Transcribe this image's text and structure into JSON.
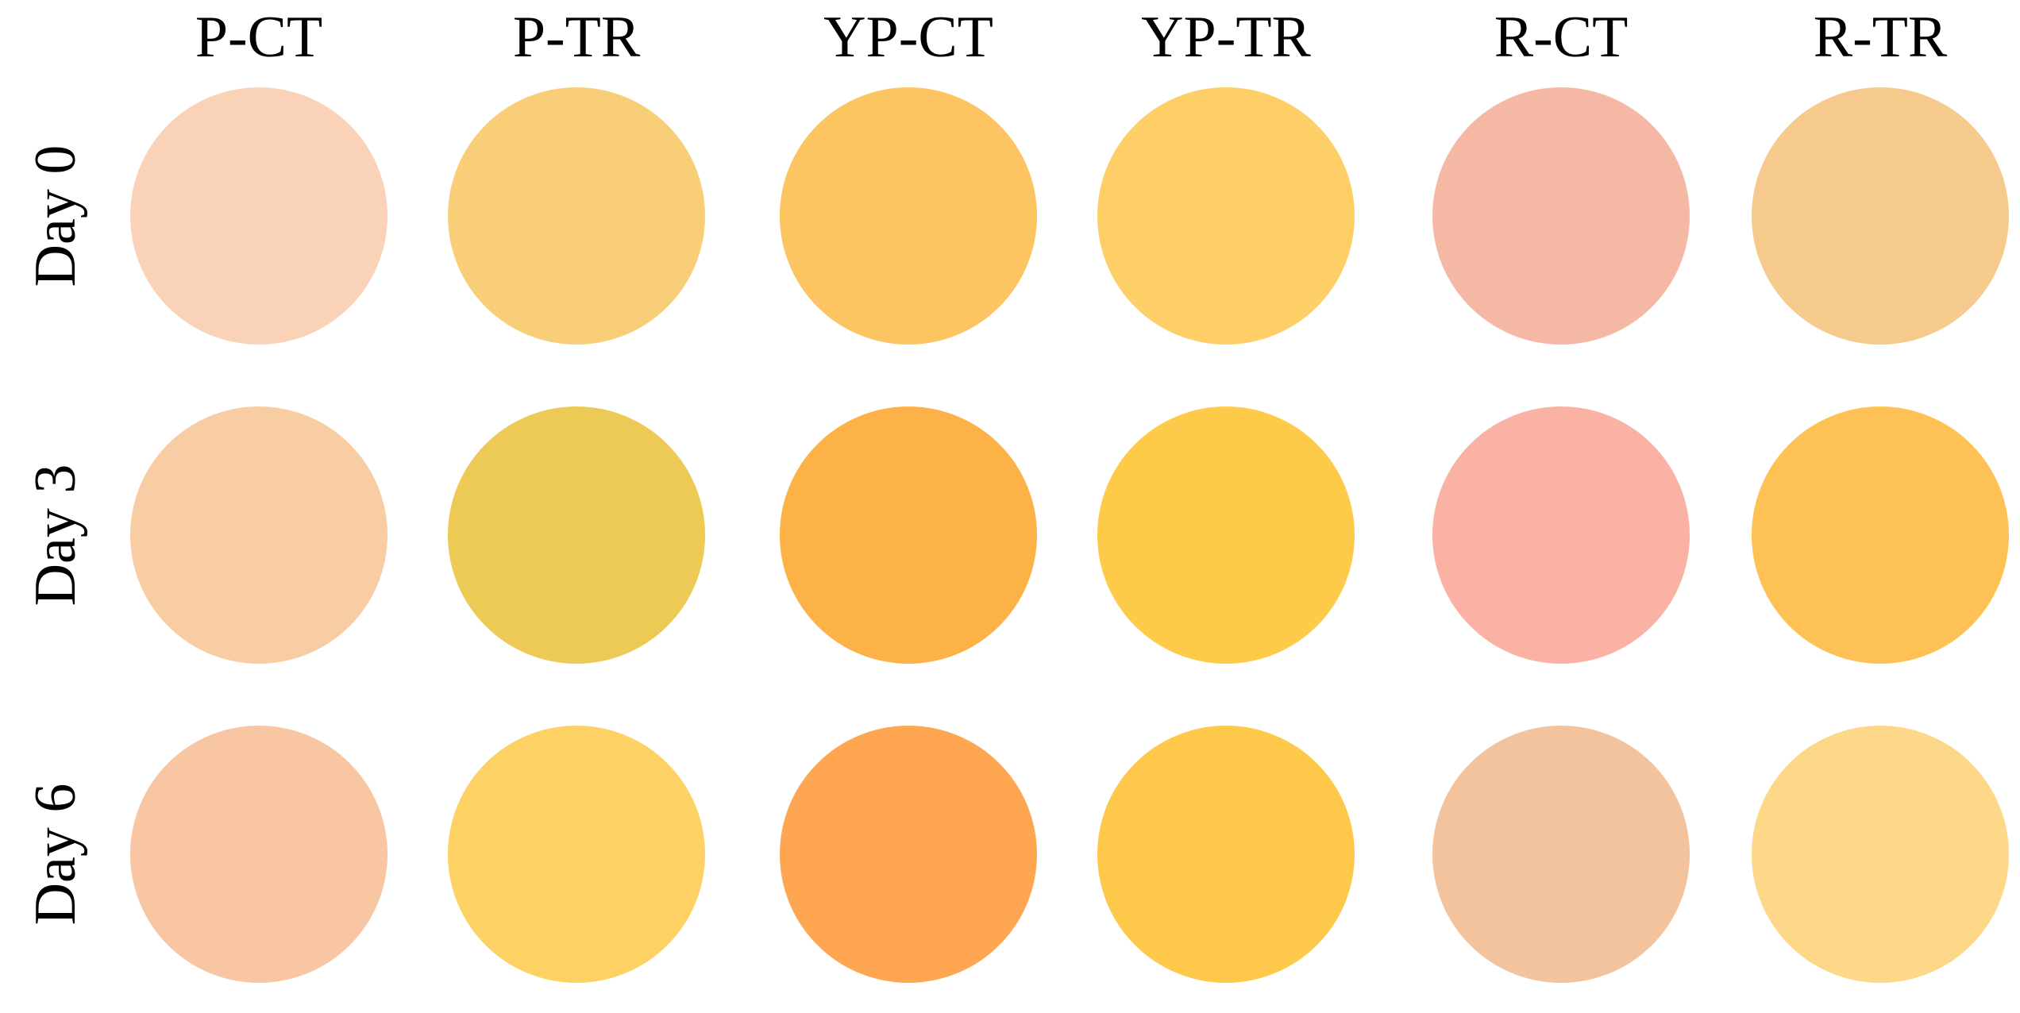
{
  "columns": [
    "P-CT",
    "P-TR",
    "YP-CT",
    "YP-TR",
    "R-CT",
    "R-TR"
  ],
  "rows": [
    {
      "label": "Day 0",
      "colors": [
        "#fad2b8",
        "#f9ce79",
        "#fdc462",
        "#fecf66",
        "#f4b8a5",
        "#f6ca8c"
      ]
    },
    {
      "label": "Day 3",
      "colors": [
        "#f8cda4",
        "#edc956",
        "#fdb248",
        "#feca4a",
        "#f9b2a4",
        "#fec155"
      ]
    },
    {
      "label": "Day 6",
      "colors": [
        "#f8c6a2",
        "#fdd163",
        "#fea652",
        "#fec84b",
        "#f3c39e",
        "#fcd888"
      ]
    }
  ]
}
